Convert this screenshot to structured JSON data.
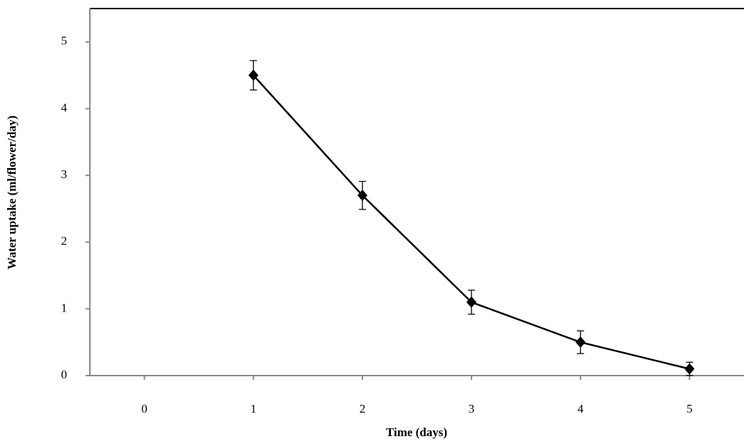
{
  "chart_data": {
    "type": "line",
    "x_label": "Time (days)",
    "y_label": "Water uptake (ml/flower/day)",
    "series": [
      {
        "color": "#000000",
        "x": [
          1,
          2,
          3,
          4,
          5
        ],
        "values": [
          4.5,
          2.7,
          1.1,
          0.5,
          0.1
        ],
        "errors": [
          0.22,
          0.21,
          0.18,
          0.17,
          0.1
        ]
      }
    ],
    "xlim": [
      -0.5,
      5.5
    ],
    "xticks": [
      0,
      1,
      2,
      3,
      4,
      5
    ],
    "ylim": [
      0,
      5.5
    ],
    "yticks": [
      0,
      1,
      2,
      3,
      4,
      5
    ],
    "grid": false
  }
}
